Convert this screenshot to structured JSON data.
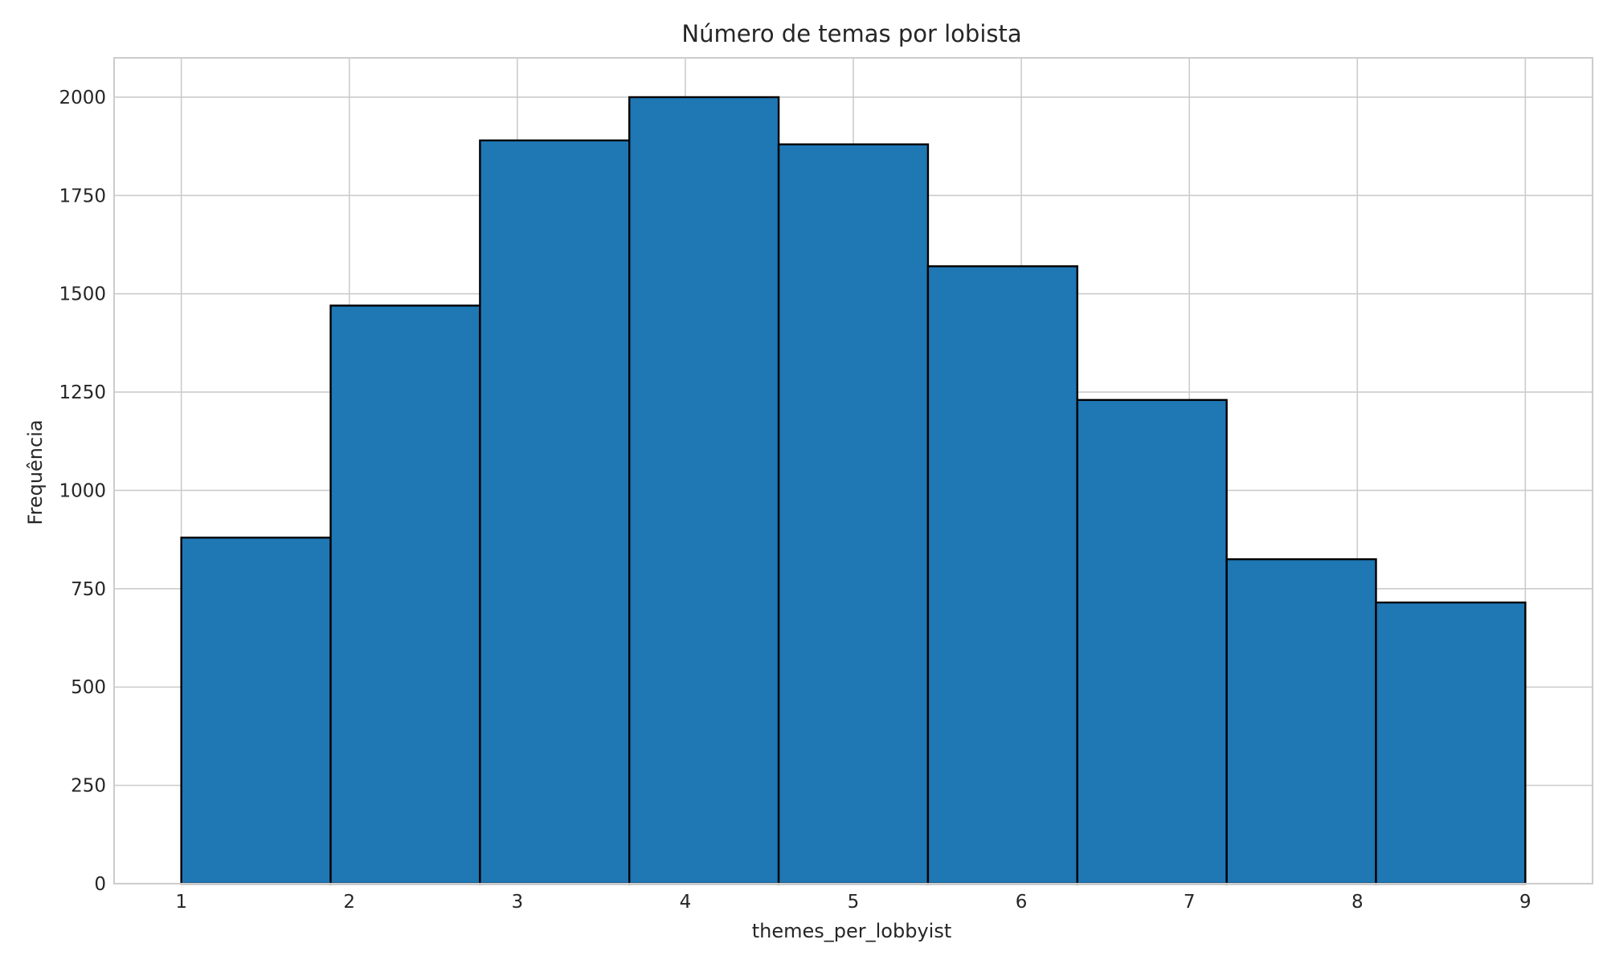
{
  "chart_data": {
    "type": "bar",
    "title": "Número de temas por lobista",
    "xlabel": "themes_per_lobbyist",
    "ylabel": "Frequência",
    "bin_edges": [
      1,
      1.8889,
      2.7778,
      3.6667,
      4.5556,
      5.4444,
      6.3333,
      7.2222,
      8.1111,
      9
    ],
    "values": [
      880,
      1470,
      1890,
      2000,
      1880,
      1570,
      1230,
      825,
      715
    ],
    "xlim": [
      0.6,
      9.4
    ],
    "ylim": [
      0,
      2100
    ],
    "xticks": [
      1,
      2,
      3,
      4,
      5,
      6,
      7,
      8,
      9
    ],
    "yticks": [
      0,
      250,
      500,
      750,
      1000,
      1250,
      1500,
      1750,
      2000
    ],
    "grid": true,
    "bar_color": "#1f77b4",
    "edge_color": "#000000",
    "grid_color": "#cccccc"
  }
}
